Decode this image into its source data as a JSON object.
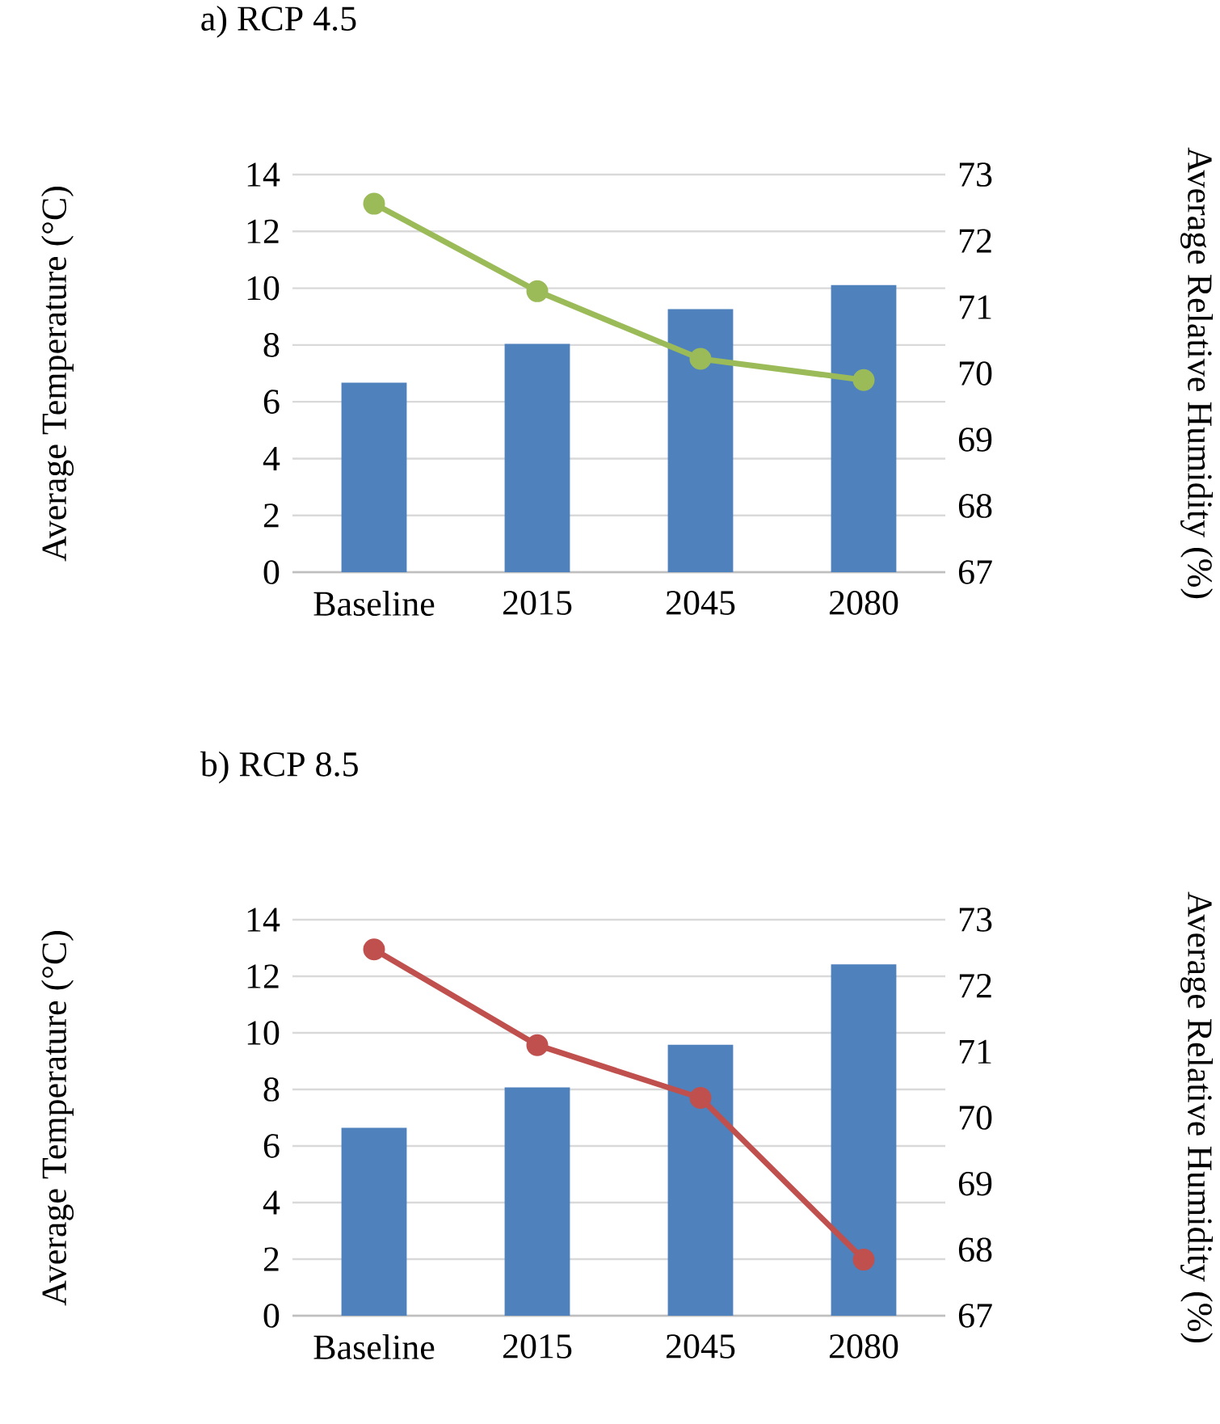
{
  "chart_data": [
    {
      "type": "bar",
      "title": "a) RCP 4.5",
      "categories": [
        "Baseline",
        "2015",
        "2045",
        "2080"
      ],
      "ylabel": "Average Temperature (°C)",
      "y2label": "Average Relative Humidity (%)",
      "ylim": [
        0,
        14
      ],
      "yticks": [
        0,
        2,
        4,
        6,
        8,
        10,
        12,
        14
      ],
      "y2lim": [
        67,
        73
      ],
      "y2ticks": [
        67,
        68,
        69,
        70,
        71,
        72,
        73
      ],
      "grid": "y",
      "marker": "circle",
      "series": [
        {
          "color": "#4f81bd",
          "values": [
            6.67,
            8.04,
            9.26,
            10.11
          ]
        },
        {
          "type": "line",
          "axis": "y2",
          "color": "#9bbb59",
          "values": [
            72.56,
            71.24,
            70.22,
            69.9
          ]
        }
      ]
    },
    {
      "type": "bar",
      "title": "b) RCP 8.5",
      "categories": [
        "Baseline",
        "2015",
        "2045",
        "2080"
      ],
      "ylabel": "Average Temperature (°C)",
      "y2label": "Average Relative Humidity (%)",
      "ylim": [
        0,
        14
      ],
      "yticks": [
        0,
        2,
        4,
        6,
        8,
        10,
        12,
        14
      ],
      "y2lim": [
        67,
        73
      ],
      "y2ticks": [
        67,
        68,
        69,
        70,
        71,
        72,
        73
      ],
      "grid": "y",
      "marker": "circle",
      "series": [
        {
          "color": "#4f81bd",
          "values": [
            6.64,
            8.07,
            9.58,
            12.42
          ]
        },
        {
          "type": "line",
          "axis": "y2",
          "color": "#c0504d",
          "values": [
            72.55,
            71.1,
            70.3,
            67.85
          ]
        }
      ]
    }
  ]
}
